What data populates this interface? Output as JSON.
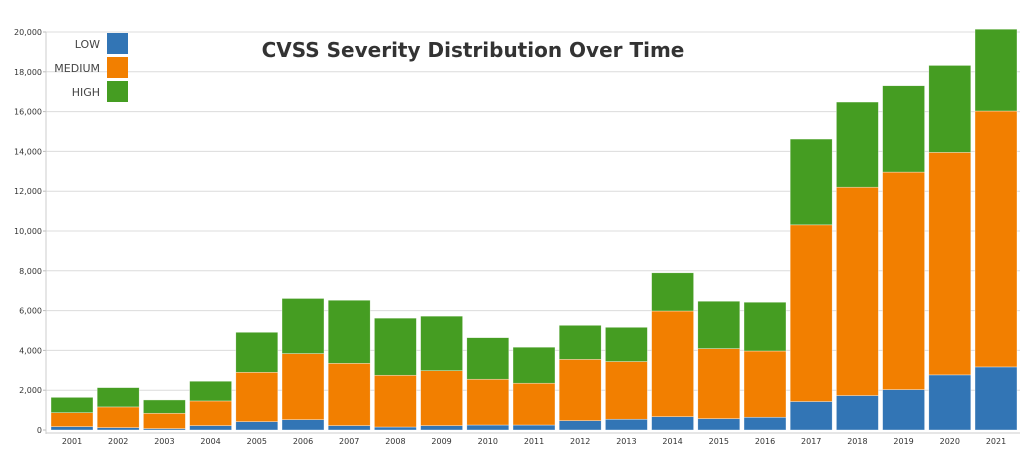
{
  "chart_data": {
    "type": "bar",
    "stacked": true,
    "title": "CVSS Severity Distribution Over Time",
    "xlabel": "",
    "ylabel": "",
    "ylim": [
      0,
      20000
    ],
    "yticks": [
      "0",
      "2,000",
      "4,000",
      "6,000",
      "8,000",
      "10,000",
      "12,000",
      "14,000",
      "16,000",
      "18,000",
      "20,000"
    ],
    "grid": true,
    "legend_position": "top-left",
    "categories": [
      "2001",
      "2002",
      "2003",
      "2004",
      "2005",
      "2006",
      "2007",
      "2008",
      "2009",
      "2010",
      "2011",
      "2012",
      "2013",
      "2014",
      "2015",
      "2016",
      "2017",
      "2018",
      "2019",
      "2020",
      "2021"
    ],
    "series": [
      {
        "name": "LOW",
        "color": "#3275b5",
        "values": [
          170,
          120,
          70,
          220,
          420,
          520,
          220,
          150,
          220,
          250,
          250,
          470,
          540,
          670,
          570,
          640,
          1430,
          1730,
          2030,
          2770,
          3170
        ]
      },
      {
        "name": "MEDIUM",
        "color": "#f27f00",
        "values": [
          700,
          1040,
          770,
          1240,
          2480,
          3320,
          3130,
          2600,
          2760,
          2300,
          2100,
          3080,
          2900,
          5310,
          3520,
          3330,
          8880,
          10470,
          10930,
          11180,
          12860
        ]
      },
      {
        "name": "HIGH",
        "color": "#459d22",
        "values": [
          770,
          970,
          670,
          990,
          2010,
          2770,
          3170,
          2870,
          2740,
          2090,
          1810,
          1710,
          1720,
          1920,
          2380,
          2450,
          4310,
          4280,
          4340,
          4370,
          4110
        ]
      }
    ]
  }
}
